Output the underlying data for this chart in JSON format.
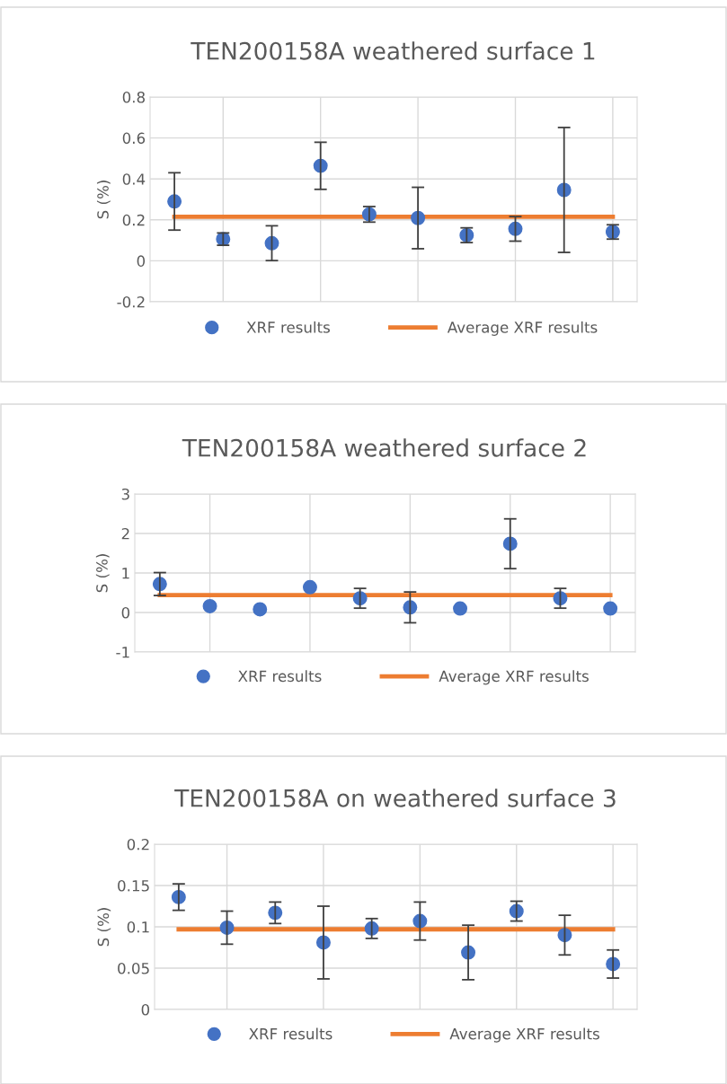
{
  "chart_data": [
    {
      "type": "scatter",
      "title": "TEN200158A weathered surface 1",
      "ylabel": "S (%)",
      "categories": [
        null,
        null,
        null,
        null,
        null,
        null,
        null,
        null,
        null,
        null
      ],
      "ylim": [
        -0.2,
        0.8
      ],
      "yticks": [
        -0.2,
        0,
        0.2,
        0.4,
        0.6,
        0.8
      ],
      "grid": true,
      "legend": "bottom",
      "marker": "circle",
      "series": [
        {
          "name": "XRF results",
          "color": "#4472c4",
          "values": [
            0.29,
            0.106,
            0.086,
            0.464,
            0.227,
            0.209,
            0.125,
            0.156,
            0.346,
            0.141
          ],
          "errors": [
            0.14,
            0.03,
            0.085,
            0.115,
            0.038,
            0.15,
            0.036,
            0.06,
            0.305,
            0.035
          ]
        }
      ],
      "ref_lines": [
        {
          "axis": "y",
          "value": 0.215,
          "label": "Average XRF results",
          "color": "#ed7d31",
          "line_style": "solid"
        }
      ]
    },
    {
      "type": "scatter",
      "title": "TEN200158A weathered surface 2",
      "ylabel": "S (%)",
      "categories": [
        null,
        null,
        null,
        null,
        null,
        null,
        null,
        null,
        null,
        null
      ],
      "ylim": [
        -1,
        3
      ],
      "yticks": [
        -1,
        0,
        1,
        2,
        3
      ],
      "grid": true,
      "legend": "bottom",
      "marker": "circle",
      "series": [
        {
          "name": "XRF results",
          "color": "#4472c4",
          "values": [
            0.72,
            0.16,
            0.08,
            0.64,
            0.36,
            0.13,
            0.1,
            1.74,
            0.36,
            0.1
          ],
          "errors": [
            0.29,
            null,
            null,
            null,
            0.25,
            0.39,
            null,
            0.63,
            0.25,
            null
          ]
        }
      ],
      "ref_lines": [
        {
          "axis": "y",
          "value": 0.44,
          "label": "Average XRF results",
          "color": "#ed7d31",
          "line_style": "solid"
        }
      ]
    },
    {
      "type": "scatter",
      "title": "TEN200158A on weathered surface 3",
      "ylabel": "S (%)",
      "categories": [
        null,
        null,
        null,
        null,
        null,
        null,
        null,
        null,
        null,
        null
      ],
      "ylim": [
        0,
        0.2
      ],
      "yticks": [
        0,
        0.05,
        0.1,
        0.15,
        0.2
      ],
      "grid": true,
      "legend": "bottom",
      "marker": "circle",
      "series": [
        {
          "name": "XRF results",
          "color": "#4472c4",
          "values": [
            0.136,
            0.099,
            0.117,
            0.081,
            0.098,
            0.107,
            0.069,
            0.119,
            0.09,
            0.055
          ],
          "errors": [
            0.016,
            0.02,
            0.013,
            0.044,
            0.012,
            0.023,
            0.033,
            0.012,
            0.024,
            0.017
          ]
        }
      ],
      "ref_lines": [
        {
          "axis": "y",
          "value": 0.097,
          "label": "Average XRF results",
          "color": "#ed7d31",
          "line_style": "solid"
        }
      ]
    }
  ]
}
